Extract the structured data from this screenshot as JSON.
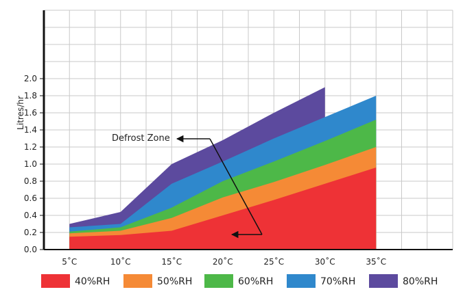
{
  "chart_data": {
    "type": "area",
    "title": "",
    "xlabel": "",
    "ylabel": "Litres/hr",
    "x": [
      5,
      10,
      15,
      20,
      25,
      30,
      35
    ],
    "x_tick_labels": [
      "5˚C",
      "10˚C",
      "15˚C",
      "20˚C",
      "25˚C",
      "30˚C",
      "35˚C"
    ],
    "xlim": [
      2.5,
      42.5
    ],
    "y_tick_values": [
      0.0,
      0.2,
      0.4,
      0.6,
      0.8,
      1.0,
      1.2,
      1.4,
      1.6,
      1.8,
      2.0
    ],
    "y_tick_labels": [
      "0.0",
      "0.2",
      "0.4",
      "0.6",
      "0.8",
      "1.0",
      "1.2",
      "1.4",
      "1.6",
      "1.8",
      "2.0"
    ],
    "ylim": [
      0,
      2.8
    ],
    "grid": true,
    "series": [
      {
        "name": "40%RH",
        "color": "#ee3236",
        "x": [
          5,
          10,
          15,
          20,
          25,
          30,
          35
        ],
        "values": [
          0.15,
          0.17,
          0.22,
          0.4,
          0.58,
          0.77,
          0.96
        ]
      },
      {
        "name": "50%RH",
        "color": "#f58a36",
        "x": [
          5,
          10,
          15,
          20,
          25,
          30,
          35
        ],
        "values": [
          0.19,
          0.22,
          0.37,
          0.61,
          0.79,
          0.99,
          1.2
        ]
      },
      {
        "name": "60%RH",
        "color": "#4db848",
        "x": [
          5,
          10,
          15,
          20,
          25,
          30,
          35
        ],
        "values": [
          0.21,
          0.26,
          0.49,
          0.8,
          1.03,
          1.27,
          1.52
        ]
      },
      {
        "name": "70%RH",
        "color": "#2f88cc",
        "x": [
          5,
          10,
          15,
          20,
          25,
          30,
          35
        ],
        "values": [
          0.26,
          0.3,
          0.77,
          1.03,
          1.3,
          1.55,
          1.8
        ]
      },
      {
        "name": "80%RH",
        "color": "#5c4a9e",
        "x": [
          5,
          10,
          15,
          20,
          25,
          30
        ],
        "values": [
          0.3,
          0.44,
          1.0,
          1.28,
          1.6,
          1.9
        ]
      }
    ],
    "legend_position": "bottom",
    "annotation": {
      "text": "Defrost Zone"
    }
  }
}
